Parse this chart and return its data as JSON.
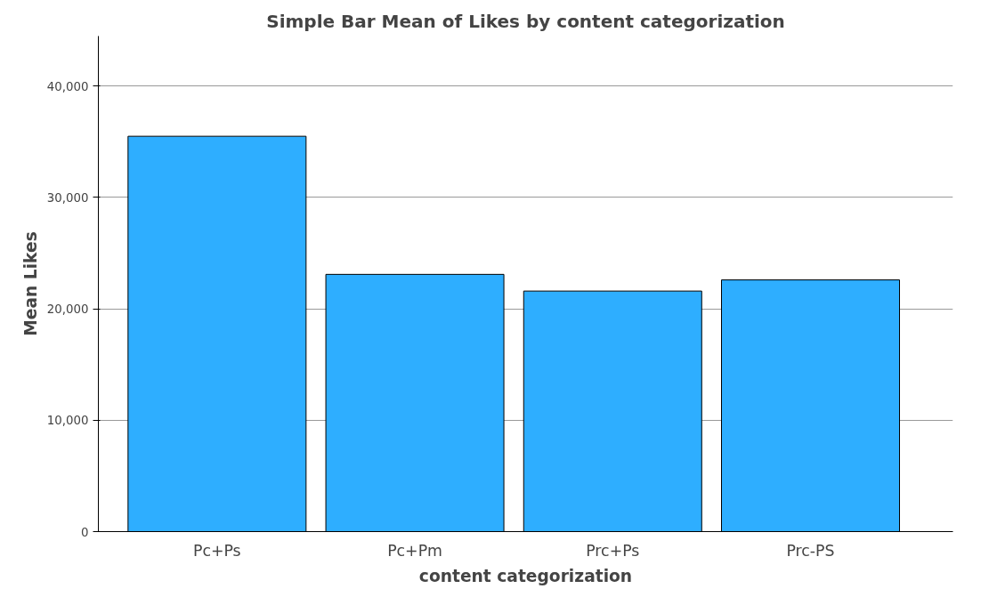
{
  "chart_data": {
    "type": "bar",
    "title": "Simple Bar Mean of Likes by content categorization",
    "xlabel": "content categorization",
    "ylabel": "Mean Likes",
    "categories": [
      "Pc+Ps",
      "Pc+Pm",
      "Prc+Ps",
      "Prc-PS"
    ],
    "values": [
      35500,
      23100,
      21600,
      22600
    ],
    "color": "#2eaeff",
    "ylim": [
      0,
      44500
    ],
    "yticks": [
      {
        "value": 0,
        "label": "0"
      },
      {
        "value": 10000,
        "label": "10,000"
      },
      {
        "value": 20000,
        "label": "20,000"
      },
      {
        "value": 30000,
        "label": "30,000"
      },
      {
        "value": 40000,
        "label": "40,000"
      }
    ],
    "grid": "y"
  }
}
